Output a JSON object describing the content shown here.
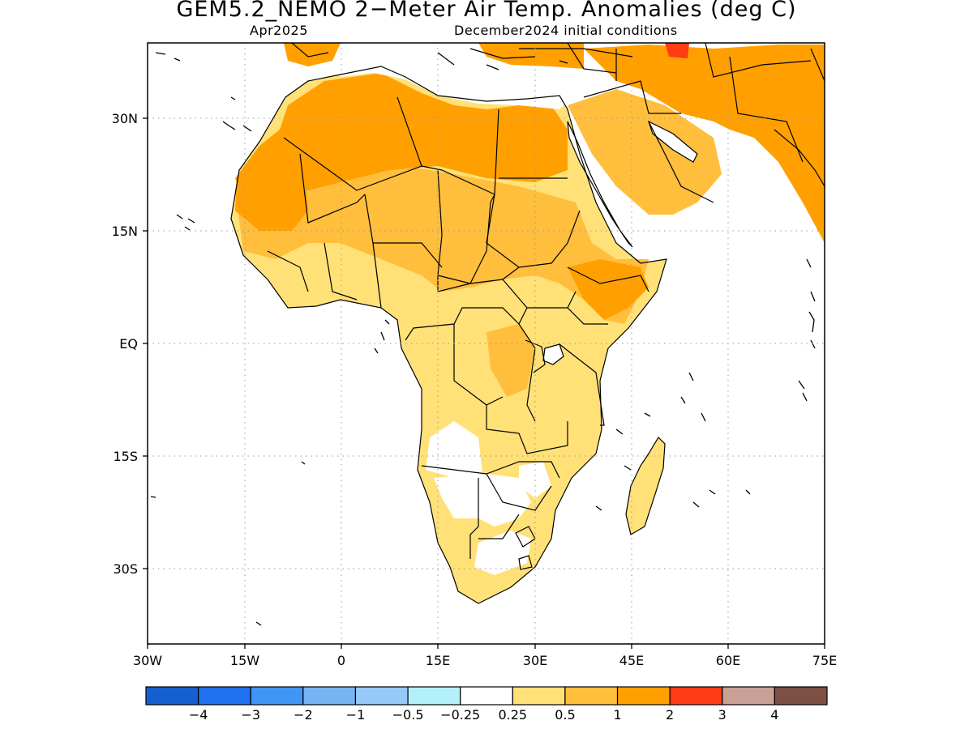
{
  "title": "GEM5.2_NEMO 2−Meter Air Temp. Anomalies (deg C)",
  "subtitle_left": "Apr2025",
  "subtitle_right": "December2024 initial conditions",
  "map": {
    "region": "Africa and Middle East",
    "lon_range": [
      -30,
      75
    ],
    "lat_range": [
      -40,
      40
    ],
    "lon_ticks": [
      "30W",
      "15W",
      "0",
      "15E",
      "30E",
      "45E",
      "60E",
      "75E"
    ],
    "lat_ticks": [
      "30N",
      "15N",
      "EQ",
      "15S",
      "30S"
    ],
    "grid": "dotted",
    "dominant_anomaly": "positive (0.5 to 2 deg C), strongest over North Africa and Arabian Peninsula"
  },
  "colorbar": {
    "colors": [
      "#1560d0",
      "#2070f0",
      "#4096f4",
      "#78b4f4",
      "#96c8f8",
      "#b4f0fa",
      "#ffffff",
      "#ffe178",
      "#ffbe3c",
      "#ffa000",
      "#ff3c14",
      "#c8a096",
      "#7c5044"
    ],
    "labels": [
      "−4",
      "−3",
      "−2",
      "−1",
      "−0.5",
      "−0.25",
      "0.25",
      "0.5",
      "1",
      "2",
      "3",
      "4"
    ]
  },
  "palette": {
    "anom_025_05": "#ffe178",
    "anom_05_1": "#ffbe3c",
    "anom_1_2": "#ffa000",
    "neutral": "#ffffff",
    "grid": "#aaaaaa",
    "coast": "#000000"
  }
}
